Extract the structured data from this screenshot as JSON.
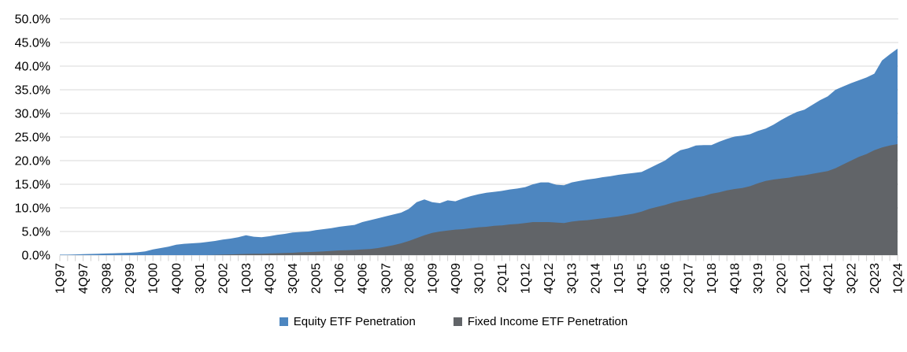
{
  "chart_data": {
    "type": "area",
    "title": "",
    "grid": "horizontal",
    "legend_position": "bottom",
    "y_axis": {
      "min": 0,
      "max": 50,
      "tick_step": 5,
      "tick_labels": [
        "50.0%",
        "45.0%",
        "40.0%",
        "35.0%",
        "30.0%",
        "25.0%",
        "20.0%",
        "15.0%",
        "10.0%",
        "5.0%",
        "0.0%"
      ]
    },
    "x_axis": {
      "unit": "quarter",
      "first_quarter": "1Q97",
      "last_quarter": "1Q24",
      "quarter_count": 109,
      "label_every_n_quarters": 3,
      "tick_labels": [
        "1Q97",
        "4Q97",
        "3Q98",
        "2Q99",
        "1Q00",
        "4Q00",
        "3Q01",
        "2Q02",
        "1Q03",
        "4Q03",
        "3Q04",
        "2Q05",
        "1Q06",
        "4Q06",
        "3Q07",
        "2Q08",
        "1Q09",
        "4Q09",
        "3Q10",
        "2Q11",
        "1Q12",
        "4Q12",
        "3Q13",
        "2Q14",
        "1Q15",
        "4Q15",
        "3Q16",
        "2Q17",
        "1Q18",
        "4Q18",
        "3Q19",
        "2Q20",
        "1Q21",
        "4Q21",
        "3Q22",
        "2Q23",
        "1Q24"
      ]
    },
    "series": [
      {
        "name": "Equity ETF Penetration",
        "color": "#4D86C0",
        "values": [
          0.1,
          0.1,
          0.15,
          0.2,
          0.25,
          0.3,
          0.35,
          0.4,
          0.45,
          0.5,
          0.6,
          0.8,
          1.2,
          1.5,
          1.8,
          2.2,
          2.4,
          2.5,
          2.6,
          2.8,
          3.0,
          3.3,
          3.5,
          3.8,
          4.2,
          3.9,
          3.8,
          4.0,
          4.3,
          4.5,
          4.8,
          4.9,
          5.0,
          5.3,
          5.5,
          5.7,
          6.0,
          6.2,
          6.4,
          7.0,
          7.4,
          7.8,
          8.2,
          8.6,
          9.0,
          9.8,
          11.2,
          11.8,
          11.2,
          11.0,
          11.6,
          11.4,
          12.0,
          12.5,
          12.9,
          13.2,
          13.4,
          13.6,
          13.9,
          14.1,
          14.4,
          15.0,
          15.4,
          15.4,
          14.9,
          14.8,
          15.4,
          15.7,
          16.0,
          16.2,
          16.5,
          16.7,
          17.0,
          17.2,
          17.4,
          17.6,
          18.4,
          19.2,
          20.0,
          21.2,
          22.2,
          22.6,
          23.2,
          23.3,
          23.3,
          24.0,
          24.6,
          25.1,
          25.3,
          25.6,
          26.3,
          26.8,
          27.6,
          28.6,
          29.5,
          30.3,
          30.8,
          31.8,
          32.8,
          33.6,
          35.0,
          35.7,
          36.4,
          37.0,
          37.6,
          38.4,
          41.2,
          42.5,
          43.7
        ]
      },
      {
        "name": "Fixed Income ETF Penetration",
        "color": "#616468",
        "values": [
          0,
          0,
          0,
          0,
          0,
          0,
          0,
          0,
          0,
          0,
          0,
          0,
          0,
          0,
          0,
          0,
          0,
          0,
          0,
          0,
          0.05,
          0.1,
          0.15,
          0.2,
          0.25,
          0.3,
          0.3,
          0.35,
          0.4,
          0.45,
          0.5,
          0.6,
          0.65,
          0.7,
          0.8,
          0.9,
          1.0,
          1.05,
          1.1,
          1.2,
          1.3,
          1.5,
          1.8,
          2.1,
          2.5,
          3.0,
          3.6,
          4.2,
          4.7,
          5.0,
          5.2,
          5.4,
          5.5,
          5.7,
          5.9,
          6.0,
          6.2,
          6.3,
          6.5,
          6.6,
          6.8,
          7.0,
          7.0,
          7.0,
          6.9,
          6.8,
          7.1,
          7.3,
          7.4,
          7.6,
          7.8,
          8.0,
          8.2,
          8.5,
          8.8,
          9.2,
          9.8,
          10.2,
          10.6,
          11.1,
          11.5,
          11.8,
          12.2,
          12.5,
          13.0,
          13.3,
          13.7,
          14.0,
          14.2,
          14.6,
          15.2,
          15.7,
          16.0,
          16.2,
          16.4,
          16.7,
          16.9,
          17.2,
          17.5,
          17.8,
          18.4,
          19.2,
          20.0,
          20.8,
          21.4,
          22.2,
          22.8,
          23.2,
          23.5
        ]
      }
    ],
    "style": {
      "gridline_color": "#D9D9D9",
      "axis_tick_color": "#CFCFCF",
      "text_color": "#000000",
      "background": "#FFFFFF"
    }
  },
  "legend": {
    "items": [
      {
        "label": "Equity ETF Penetration",
        "color": "#4D86C0"
      },
      {
        "label": "Fixed Income ETF Penetration",
        "color": "#616468"
      }
    ]
  }
}
